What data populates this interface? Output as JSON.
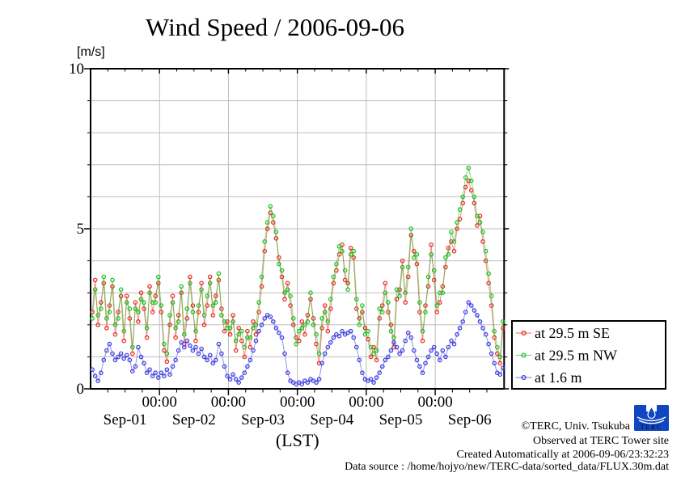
{
  "title": "Wind Speed / 2006-09-06",
  "y_axis": {
    "unit": "[m/s]",
    "tick_labels": [
      "10",
      "5",
      "0"
    ]
  },
  "x_axis": {
    "time_tick_labels": [
      "00:00",
      "00:00",
      "00:00",
      "00:00",
      "00:00"
    ],
    "day_labels": [
      "Sep-01",
      "Sep-02",
      "Sep-03",
      "Sep-04",
      "Sep-05",
      "Sep-06"
    ],
    "label": "(LST)"
  },
  "legend": {
    "entries": [
      {
        "label": "at 29.5 m SE"
      },
      {
        "label": "at 29.5 m NW"
      },
      {
        "label": "at 1.6 m"
      }
    ]
  },
  "footer": {
    "copyright": "©TERC, Univ. Tsukuba",
    "observed": "Observed at TERC Tower site",
    "created": "Created Automatically at 2006-09-06/23:32:23",
    "data_source": "Data source : /home/hojyo/new/TERC-data/sorted_data/FLUX.30m.dat",
    "logo_text": "TERC"
  },
  "chart_data": {
    "type": "line",
    "title": "Wind Speed / 2006-09-06",
    "xlabel": "(LST)",
    "ylabel": "[m/s]",
    "ylim": [
      0,
      10
    ],
    "x_days_shown": 6,
    "x_sampling": "hourly values estimated from plot, starting Sep-01 00:00",
    "grid": true,
    "grid_color": "#bdbdbd",
    "legend_position": "outside right",
    "series": [
      {
        "name": "at 29.5 m SE",
        "color": "#e8281e",
        "values": [
          2.4,
          3.4,
          2.0,
          2.7,
          3.3,
          1.9,
          2.6,
          3.2,
          1.7,
          2.4,
          2.9,
          1.5,
          2.9,
          2.2,
          1.1,
          2.7,
          2.1,
          3.0,
          2.5,
          1.6,
          3.2,
          2.4,
          2.9,
          3.3,
          2.4,
          1.2,
          0.85,
          2.0,
          2.9,
          1.6,
          2.3,
          3.0,
          1.4,
          2.2,
          3.5,
          2.6,
          1.5,
          2.4,
          3.3,
          2.0,
          2.6,
          3.5,
          2.3,
          2.9,
          3.4,
          2.5,
          1.8,
          2.1,
          1.7,
          2.3,
          1.2,
          1.9,
          1.5,
          1.0,
          1.8,
          1.3,
          2.1,
          1.7,
          2.4,
          3.2,
          4.3,
          5.0,
          5.5,
          5.2,
          4.7,
          4.1,
          3.5,
          2.8,
          3.3,
          2.6,
          2.0,
          1.6,
          1.5,
          2.1,
          1.7,
          2.3,
          2.8,
          2.2,
          1.4,
          0.8,
          1.9,
          2.6,
          1.8,
          2.5,
          3.3,
          3.7,
          4.2,
          4.5,
          3.4,
          3.3,
          4.4,
          4.1,
          2.5,
          2.2,
          2.4,
          1.9,
          1.55,
          1.0,
          1.3,
          0.9,
          2.2,
          2.6,
          3.3,
          2.4,
          2.0,
          1.3,
          2.8,
          3.1,
          4.0,
          2.7,
          3.5,
          4.8,
          4.3,
          3.9,
          2.4,
          1.5,
          2.6,
          3.2,
          4.5,
          3.4,
          2.4,
          2.7,
          3.2,
          3.8,
          4.4,
          4.6,
          4.3,
          5.0,
          5.3,
          5.8,
          6.3,
          6.5,
          6.2,
          5.8,
          5.1,
          5.4,
          4.6,
          4.0,
          3.3,
          2.6,
          1.6,
          1.1,
          0.8,
          1.9
        ]
      },
      {
        "name": "at 29.5 m NW",
        "color": "#1dbd1d",
        "values": [
          2.2,
          3.1,
          2.3,
          2.5,
          3.5,
          2.2,
          2.4,
          3.4,
          2.0,
          2.2,
          3.1,
          1.8,
          2.7,
          2.5,
          1.3,
          2.5,
          2.4,
          2.8,
          2.7,
          1.9,
          3.0,
          2.7,
          2.7,
          3.5,
          2.6,
          1.4,
          1.1,
          2.3,
          2.7,
          1.9,
          2.1,
          3.2,
          1.7,
          2.5,
          3.3,
          2.4,
          1.8,
          2.6,
          3.1,
          2.3,
          2.9,
          3.3,
          2.6,
          2.7,
          3.6,
          2.3,
          2.1,
          1.9,
          1.9,
          2.1,
          1.5,
          1.7,
          1.8,
          1.3,
          1.6,
          1.6,
          1.9,
          2.0,
          2.7,
          3.5,
          4.6,
          5.2,
          5.7,
          5.4,
          4.9,
          3.9,
          3.7,
          3.0,
          3.1,
          2.9,
          2.2,
          1.4,
          1.8,
          1.9,
          2.0,
          2.1,
          3.0,
          2.0,
          1.7,
          1.1,
          2.2,
          2.4,
          2.1,
          2.8,
          3.5,
          3.9,
          4.45,
          4.3,
          3.7,
          3.1,
          4.2,
          4.3,
          2.8,
          2.0,
          2.6,
          1.7,
          1.8,
          1.3,
          1.1,
          1.2,
          2.5,
          2.4,
          3.0,
          2.7,
          1.8,
          1.6,
          3.1,
          2.9,
          3.8,
          3.0,
          3.8,
          5.0,
          4.1,
          4.2,
          2.7,
          1.8,
          2.4,
          3.5,
          4.2,
          3.7,
          2.6,
          3.0,
          3.0,
          4.1,
          4.2,
          4.9,
          4.6,
          5.2,
          5.6,
          6.0,
          6.6,
          6.9,
          6.5,
          6.0,
          5.4,
          5.2,
          4.9,
          4.3,
          3.6,
          2.9,
          1.8,
          1.3,
          1.0,
          2.1
        ]
      },
      {
        "name": "at 1.6 m",
        "color": "#3b3be0",
        "values": [
          0.6,
          0.4,
          0.25,
          0.5,
          0.9,
          1.2,
          1.4,
          1.1,
          0.9,
          1.0,
          1.1,
          0.95,
          1.05,
          0.9,
          0.55,
          0.7,
          1.3,
          1.0,
          0.8,
          0.5,
          0.6,
          0.4,
          0.5,
          0.35,
          0.5,
          0.4,
          0.6,
          0.45,
          0.7,
          0.9,
          1.2,
          1.45,
          1.3,
          1.5,
          1.35,
          1.2,
          1.3,
          1.1,
          1.25,
          1.0,
          0.9,
          1.05,
          0.8,
          0.9,
          1.4,
          1.1,
          0.7,
          0.4,
          0.3,
          0.45,
          0.3,
          0.2,
          0.35,
          0.5,
          0.7,
          0.9,
          1.2,
          1.5,
          1.8,
          2.0,
          2.2,
          2.3,
          2.25,
          2.1,
          1.9,
          1.75,
          1.6,
          1.1,
          0.5,
          0.25,
          0.2,
          0.15,
          0.2,
          0.15,
          0.25,
          0.2,
          0.3,
          0.25,
          0.2,
          0.3,
          0.8,
          1.1,
          1.3,
          1.45,
          1.6,
          1.7,
          1.65,
          1.8,
          1.7,
          1.75,
          1.8,
          1.6,
          1.3,
          0.9,
          0.5,
          0.3,
          0.25,
          0.3,
          0.2,
          0.35,
          0.5,
          0.7,
          0.9,
          1.0,
          1.2,
          1.45,
          1.3,
          1.1,
          1.2,
          1.5,
          1.75,
          1.6,
          1.2,
          0.9,
          0.7,
          0.5,
          0.8,
          1.0,
          1.2,
          1.3,
          1.1,
          0.9,
          1.2,
          1.0,
          1.3,
          1.5,
          1.4,
          1.7,
          1.9,
          2.1,
          2.4,
          2.7,
          2.6,
          2.45,
          2.3,
          2.1,
          1.9,
          1.7,
          1.4,
          1.1,
          0.8,
          0.5,
          0.45,
          0.65
        ]
      }
    ]
  }
}
